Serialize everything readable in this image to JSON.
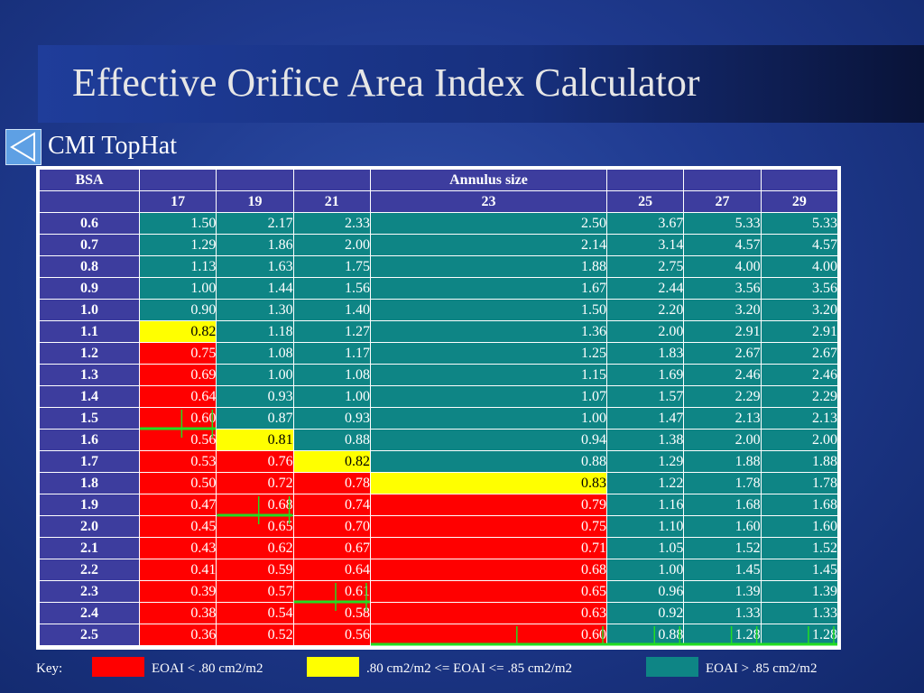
{
  "title": "Effective Orifice Area Index Calculator",
  "subtitle": "CMI TopHat",
  "back_icon": "triangle-left-icon",
  "table": {
    "corner_label": "BSA",
    "group_label": "Annulus size",
    "columns": [
      "17",
      "19",
      "21",
      "23",
      "25",
      "27",
      "29"
    ],
    "rows": [
      {
        "bsa": "0.6",
        "values": [
          "1.50",
          "2.17",
          "2.33",
          "2.50",
          "3.67",
          "5.33",
          "5.33"
        ]
      },
      {
        "bsa": "0.7",
        "values": [
          "1.29",
          "1.86",
          "2.00",
          "2.14",
          "3.14",
          "4.57",
          "4.57"
        ]
      },
      {
        "bsa": "0.8",
        "values": [
          "1.13",
          "1.63",
          "1.75",
          "1.88",
          "2.75",
          "4.00",
          "4.00"
        ]
      },
      {
        "bsa": "0.9",
        "values": [
          "1.00",
          "1.44",
          "1.56",
          "1.67",
          "2.44",
          "3.56",
          "3.56"
        ]
      },
      {
        "bsa": "1.0",
        "values": [
          "0.90",
          "1.30",
          "1.40",
          "1.50",
          "2.20",
          "3.20",
          "3.20"
        ]
      },
      {
        "bsa": "1.1",
        "values": [
          "0.82",
          "1.18",
          "1.27",
          "1.36",
          "2.00",
          "2.91",
          "2.91"
        ]
      },
      {
        "bsa": "1.2",
        "values": [
          "0.75",
          "1.08",
          "1.17",
          "1.25",
          "1.83",
          "2.67",
          "2.67"
        ]
      },
      {
        "bsa": "1.3",
        "values": [
          "0.69",
          "1.00",
          "1.08",
          "1.15",
          "1.69",
          "2.46",
          "2.46"
        ]
      },
      {
        "bsa": "1.4",
        "values": [
          "0.64",
          "0.93",
          "1.00",
          "1.07",
          "1.57",
          "2.29",
          "2.29"
        ]
      },
      {
        "bsa": "1.5",
        "values": [
          "0.60",
          "0.87",
          "0.93",
          "1.00",
          "1.47",
          "2.13",
          "2.13"
        ]
      },
      {
        "bsa": "1.6",
        "values": [
          "0.56",
          "0.81",
          "0.88",
          "0.94",
          "1.38",
          "2.00",
          "2.00"
        ]
      },
      {
        "bsa": "1.7",
        "values": [
          "0.53",
          "0.76",
          "0.82",
          "0.88",
          "1.29",
          "1.88",
          "1.88"
        ]
      },
      {
        "bsa": "1.8",
        "values": [
          "0.50",
          "0.72",
          "0.78",
          "0.83",
          "1.22",
          "1.78",
          "1.78"
        ]
      },
      {
        "bsa": "1.9",
        "values": [
          "0.47",
          "0.68",
          "0.74",
          "0.79",
          "1.16",
          "1.68",
          "1.68"
        ]
      },
      {
        "bsa": "2.0",
        "values": [
          "0.45",
          "0.65",
          "0.70",
          "0.75",
          "1.10",
          "1.60",
          "1.60"
        ]
      },
      {
        "bsa": "2.1",
        "values": [
          "0.43",
          "0.62",
          "0.67",
          "0.71",
          "1.05",
          "1.52",
          "1.52"
        ]
      },
      {
        "bsa": "2.2",
        "values": [
          "0.41",
          "0.59",
          "0.64",
          "0.68",
          "1.00",
          "1.45",
          "1.45"
        ]
      },
      {
        "bsa": "2.3",
        "values": [
          "0.39",
          "0.57",
          "0.61",
          "0.65",
          "0.96",
          "1.39",
          "1.39"
        ]
      },
      {
        "bsa": "2.4",
        "values": [
          "0.38",
          "0.54",
          "0.58",
          "0.63",
          "0.92",
          "1.33",
          "1.33"
        ]
      },
      {
        "bsa": "2.5",
        "values": [
          "0.36",
          "0.52",
          "0.56",
          "0.60",
          "0.88",
          "1.28",
          "1.28"
        ]
      }
    ]
  },
  "key": {
    "label": "Key:",
    "items": [
      {
        "text": "EOAI < .80 cm2/m2",
        "color": "#ff0000"
      },
      {
        "text": ".80 cm2/m2 <= EOAI <= .85 cm2/m2",
        "color": "#ffff00"
      },
      {
        "text": "EOAI > .85 cm2/m2",
        "color": "#0e8585"
      }
    ]
  },
  "colors": {
    "red": "#ff0000",
    "yellow": "#ffff00",
    "teal": "#0e8585",
    "header": "#3d3d9e",
    "marker_line": "#22dd22"
  }
}
